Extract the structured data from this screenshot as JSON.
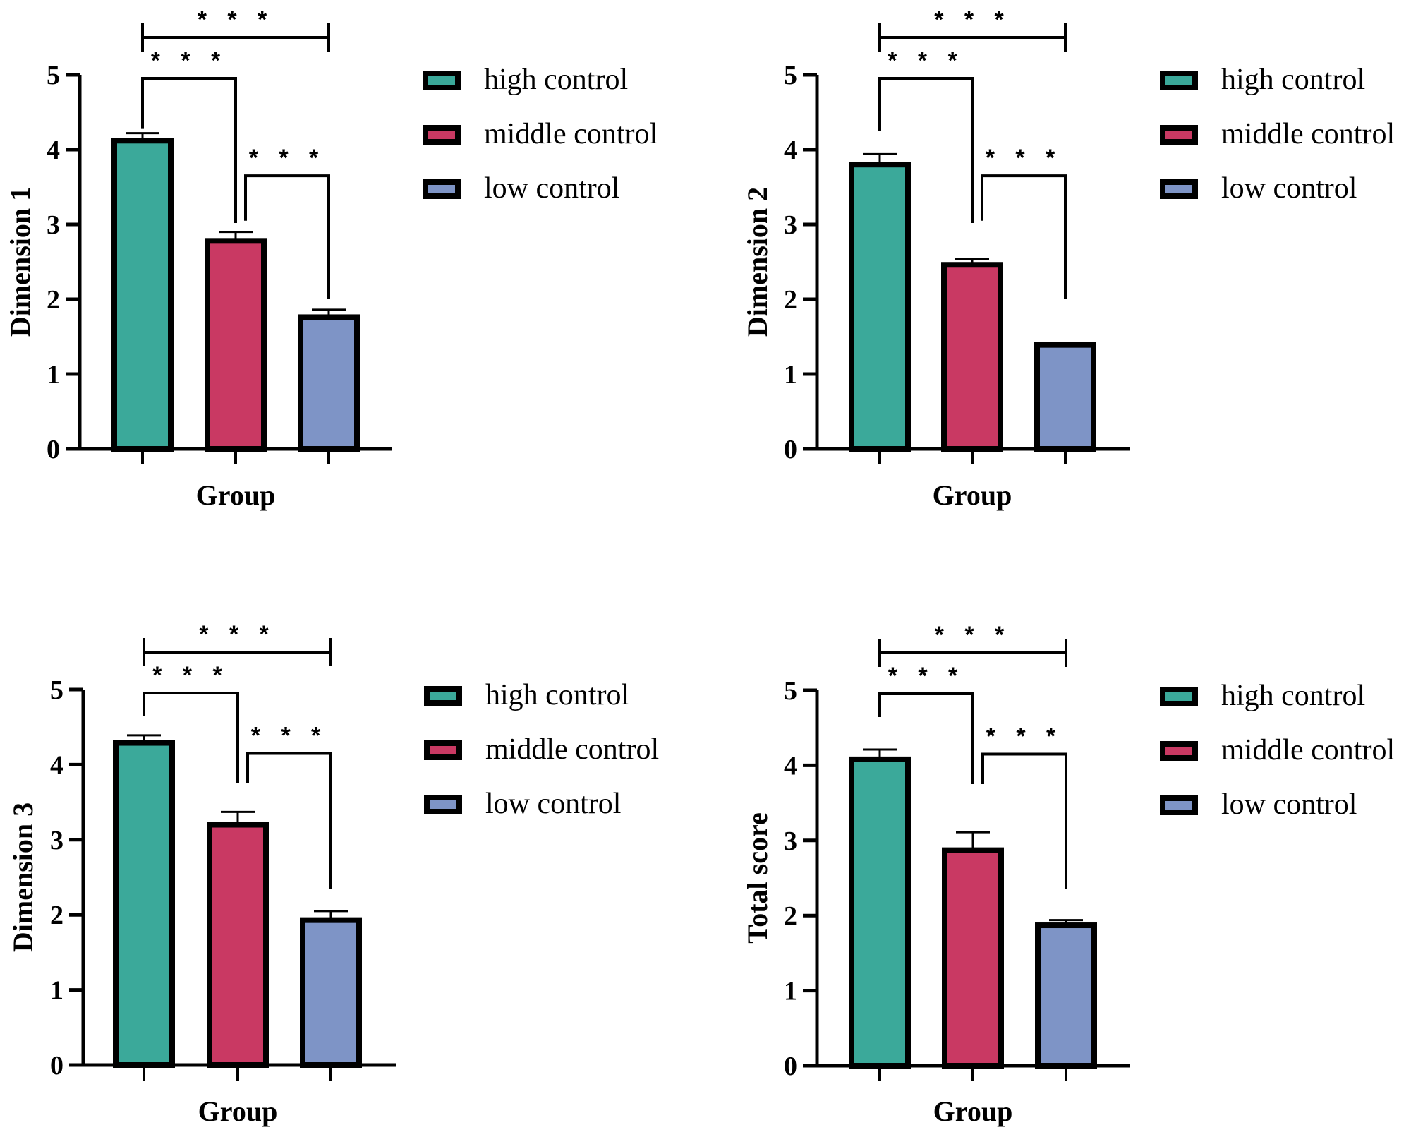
{
  "figure": {
    "colors": {
      "high control": "#3BA99A",
      "middle control": "#C93963",
      "low control": "#7E94C6",
      "outline": "#000000"
    }
  },
  "chart_data": [
    {
      "type": "bar",
      "title": "",
      "xlabel": "Group",
      "ylabel": "Dimension 1",
      "ylim": [
        0,
        5
      ],
      "yticks": [
        "0",
        "1",
        "2",
        "3",
        "4",
        "5"
      ],
      "categories": [
        "high control",
        "middle control",
        "low control"
      ],
      "values": [
        4.12,
        2.78,
        1.76
      ],
      "errors": [
        0.1,
        0.12,
        0.1
      ],
      "legend": [
        "high control",
        "middle control",
        "low control"
      ],
      "legend_position": "right",
      "significance": [
        {
          "pair": [
            "high control",
            "low control"
          ],
          "label": "***"
        },
        {
          "pair": [
            "high control",
            "middle control"
          ],
          "label": "***"
        },
        {
          "pair": [
            "middle control",
            "low control"
          ],
          "label": "***"
        }
      ]
    },
    {
      "type": "bar",
      "title": "",
      "xlabel": "Group",
      "ylabel": "Dimension 2",
      "ylim": [
        0,
        5
      ],
      "yticks": [
        "0",
        "1",
        "2",
        "3",
        "4",
        "5"
      ],
      "categories": [
        "high control",
        "middle control",
        "low control"
      ],
      "values": [
        3.8,
        2.46,
        1.39
      ],
      "errors": [
        0.14,
        0.08,
        0.03
      ],
      "legend": [
        "high control",
        "middle control",
        "low control"
      ],
      "legend_position": "right",
      "significance": [
        {
          "pair": [
            "high control",
            "low control"
          ],
          "label": "***"
        },
        {
          "pair": [
            "high control",
            "middle control"
          ],
          "label": "***"
        },
        {
          "pair": [
            "middle control",
            "low control"
          ],
          "label": "***"
        }
      ]
    },
    {
      "type": "bar",
      "title": "",
      "xlabel": "Group",
      "ylabel": "Dimension 3",
      "ylim": [
        0,
        5
      ],
      "yticks": [
        "0",
        "1",
        "2",
        "3",
        "4",
        "5"
      ],
      "categories": [
        "high control",
        "middle control",
        "low control"
      ],
      "values": [
        4.29,
        3.2,
        1.93
      ],
      "errors": [
        0.1,
        0.17,
        0.12
      ],
      "legend": [
        "high control",
        "middle control",
        "low control"
      ],
      "legend_position": "right",
      "significance": [
        {
          "pair": [
            "high control",
            "low control"
          ],
          "label": "***"
        },
        {
          "pair": [
            "high control",
            "middle control"
          ],
          "label": "***"
        },
        {
          "pair": [
            "middle control",
            "low control"
          ],
          "label": "***"
        }
      ]
    },
    {
      "type": "bar",
      "title": "",
      "xlabel": "Group",
      "ylabel": "Total score",
      "ylim": [
        0,
        5
      ],
      "yticks": [
        "0",
        "1",
        "2",
        "3",
        "4",
        "5"
      ],
      "categories": [
        "high control",
        "middle control",
        "low control"
      ],
      "values": [
        4.08,
        2.87,
        1.87
      ],
      "errors": [
        0.13,
        0.24,
        0.07
      ],
      "legend": [
        "high control",
        "middle control",
        "low control"
      ],
      "legend_position": "right",
      "significance": [
        {
          "pair": [
            "high control",
            "low control"
          ],
          "label": "***"
        },
        {
          "pair": [
            "high control",
            "middle control"
          ],
          "label": "***"
        },
        {
          "pair": [
            "middle control",
            "low control"
          ],
          "label": "***"
        }
      ]
    }
  ]
}
